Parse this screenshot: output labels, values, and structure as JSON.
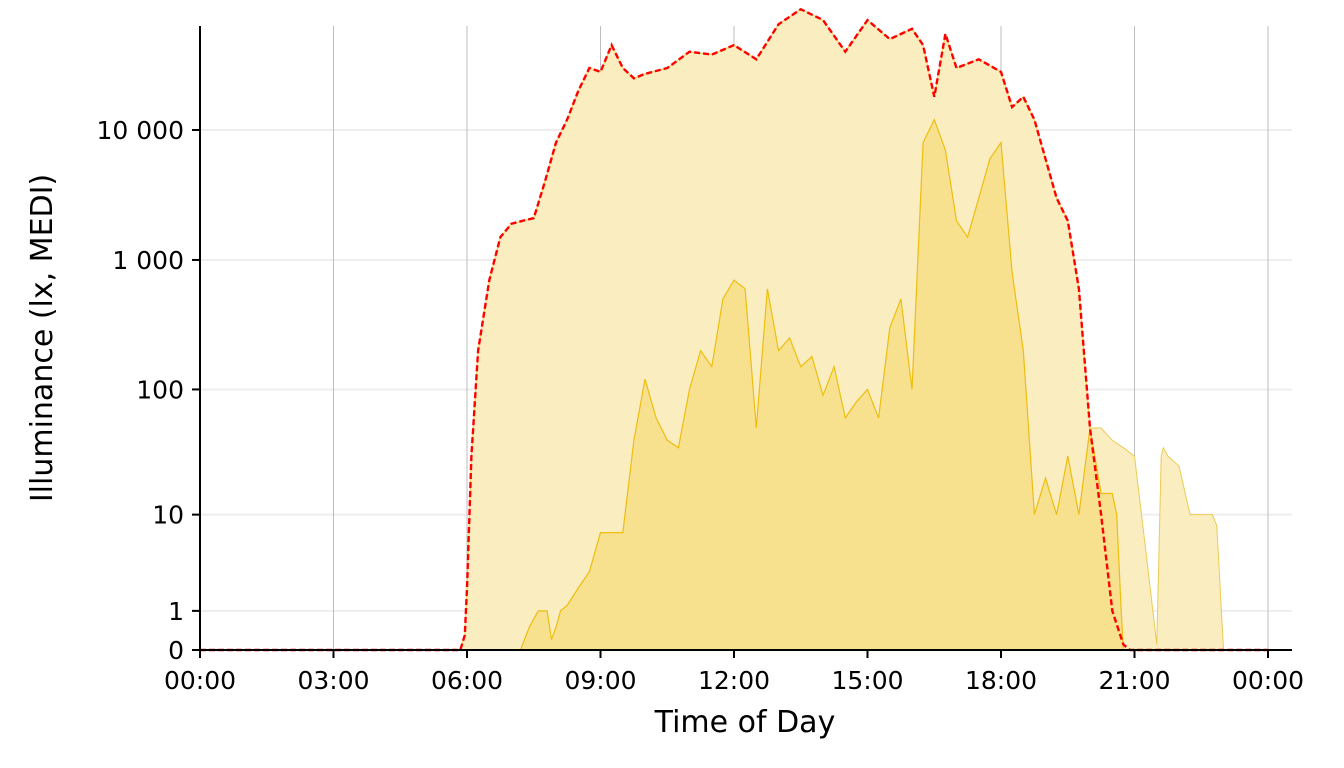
{
  "chart_data": {
    "type": "area",
    "xlabel": "Time of Day",
    "ylabel": "Illuminance (lx, MEDI)",
    "x_unit": "hours since 00:00",
    "y_scale": "symlog",
    "xlim": [
      0,
      24
    ],
    "ylim": [
      0,
      100000
    ],
    "x_ticks": [
      0,
      3,
      6,
      9,
      12,
      15,
      18,
      21,
      24
    ],
    "x_tick_labels": [
      "00:00",
      "03:00",
      "06:00",
      "09:00",
      "12:00",
      "15:00",
      "18:00",
      "21:00",
      "00:00"
    ],
    "y_ticks": [
      0,
      1,
      10,
      100,
      1000,
      10000
    ],
    "y_tick_labels": [
      "0",
      "1",
      "10",
      "100",
      "1 000",
      "10 000"
    ],
    "grid": "vertical lines at x ticks, horizontal lines at y ticks",
    "colors": {
      "upper_fill": "#FAEDBF",
      "lower_fill": "#F7E18E",
      "lower_line": "#EDBE10",
      "upper_line": "#FF0000",
      "grid_v": "#BEBEBE",
      "grid_h": "#EEEEEE"
    },
    "series": [
      {
        "style": "light yellow area",
        "x": [
          0,
          5.85,
          5.95,
          6,
          6.1,
          6.25,
          6.5,
          6.75,
          7,
          7.25,
          7.5,
          7.75,
          8,
          8.25,
          8.5,
          8.75,
          9,
          9.25,
          9.5,
          9.75,
          10,
          10.5,
          11,
          11.5,
          12,
          12.5,
          13,
          13.5,
          14,
          14.5,
          15,
          15.5,
          16,
          16.25,
          16.5,
          16.75,
          17,
          17.5,
          18,
          18.25,
          18.5,
          18.75,
          19,
          19.25,
          19.5,
          19.75,
          20,
          20.25,
          20.5,
          20.75,
          21,
          21.25,
          21.5,
          21.6,
          21.65,
          21.75,
          22,
          22.25,
          22.5,
          22.75,
          22.85,
          23
        ],
        "y": [
          0,
          0,
          0.3,
          2,
          30,
          200,
          700,
          1500,
          1900,
          2000,
          2100,
          4000,
          8000,
          12000,
          20000,
          30000,
          28000,
          45000,
          30000,
          25000,
          27000,
          30000,
          40000,
          38000,
          45000,
          35000,
          65000,
          85000,
          70000,
          40000,
          70000,
          50000,
          60000,
          45000,
          18000,
          55000,
          30000,
          35000,
          28000,
          15000,
          18000,
          12000,
          6000,
          3000,
          2000,
          600,
          50,
          50,
          40,
          35,
          30,
          5,
          0.1,
          30,
          35,
          30,
          25,
          10,
          10,
          10,
          8,
          0
        ]
      },
      {
        "style": "darker yellow area",
        "x": [
          0,
          7.2,
          7.4,
          7.6,
          7.8,
          7.9,
          8,
          8.1,
          8.25,
          8.5,
          8.75,
          9,
          9.25,
          9.5,
          9.75,
          10,
          10.25,
          10.5,
          10.75,
          11,
          11.25,
          11.5,
          11.75,
          12,
          12.25,
          12.5,
          12.75,
          13,
          13.25,
          13.5,
          13.75,
          14,
          14.25,
          14.5,
          14.75,
          15,
          15.25,
          15.5,
          15.75,
          16,
          16.25,
          16.5,
          16.75,
          17,
          17.25,
          17.5,
          17.75,
          18,
          18.25,
          18.5,
          18.75,
          19,
          19.25,
          19.5,
          19.75,
          20,
          20.25,
          20.5,
          20.6,
          20.7,
          20.75
        ],
        "y": [
          0,
          0,
          0.5,
          1,
          1,
          0.2,
          0.5,
          1,
          1.2,
          2,
          3,
          7,
          7,
          7,
          40,
          120,
          60,
          40,
          35,
          100,
          200,
          150,
          500,
          700,
          600,
          50,
          600,
          200,
          250,
          150,
          180,
          90,
          150,
          60,
          80,
          100,
          60,
          300,
          500,
          100,
          8000,
          12000,
          7000,
          2000,
          1500,
          3000,
          6000,
          8000,
          800,
          200,
          10,
          20,
          10,
          30,
          10,
          50,
          15,
          15,
          10,
          1,
          0
        ]
      },
      {
        "style": "red dashed line",
        "x": [
          0,
          5.85,
          5.95,
          6,
          6.1,
          6.25,
          6.5,
          6.75,
          7,
          7.25,
          7.5,
          7.75,
          8,
          8.25,
          8.5,
          8.75,
          9,
          9.25,
          9.5,
          9.75,
          10,
          10.5,
          11,
          11.5,
          12,
          12.5,
          13,
          13.5,
          14,
          14.5,
          15,
          15.5,
          16,
          16.25,
          16.5,
          16.75,
          17,
          17.5,
          18,
          18.25,
          18.5,
          18.75,
          19,
          19.25,
          19.5,
          19.75,
          20,
          20.25,
          20.5,
          20.75,
          20.9,
          24
        ],
        "y": [
          0,
          0,
          0.3,
          2,
          30,
          200,
          700,
          1500,
          1900,
          2000,
          2100,
          4000,
          8000,
          12000,
          20000,
          30000,
          28000,
          45000,
          30000,
          25000,
          27000,
          30000,
          40000,
          38000,
          45000,
          35000,
          65000,
          85000,
          70000,
          40000,
          70000,
          50000,
          60000,
          45000,
          18000,
          55000,
          30000,
          35000,
          28000,
          15000,
          18000,
          12000,
          6000,
          3000,
          2000,
          600,
          50,
          10,
          1,
          0.1,
          0,
          0
        ]
      }
    ]
  }
}
